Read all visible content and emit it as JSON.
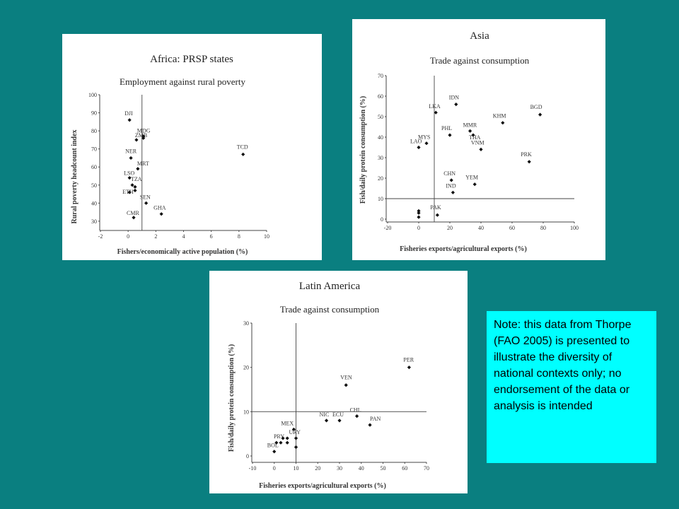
{
  "note": "Note:  this data from Thorpe (FAO 2005) is presented to illustrate the diversity of national contexts only; no endorsement of the data or analysis is intended",
  "chart_data": [
    {
      "id": "africa",
      "type": "scatter",
      "title": "Africa: PRSP states",
      "subtitle": "Employment against rural poverty",
      "xlabel": "Fishers/economically active population (%)",
      "ylabel": "Rural poverty headcount index",
      "xlim": [
        -2,
        10
      ],
      "ylim": [
        28,
        100
      ],
      "xticks": [
        -2,
        0,
        2,
        4,
        6,
        8,
        10
      ],
      "yticks": [
        30,
        40,
        50,
        60,
        70,
        80,
        90,
        100
      ],
      "ref_x": 1,
      "points": [
        {
          "label": "DJI",
          "x": 0.1,
          "y": 86
        },
        {
          "label": "ZMB",
          "x": 0.6,
          "y": 75
        },
        {
          "label": "MDG",
          "x": 1.1,
          "y": 76
        },
        {
          "label": "",
          "x": 1.1,
          "y": 77
        },
        {
          "label": "NER",
          "x": 0.2,
          "y": 65
        },
        {
          "label": "MRT",
          "x": 0.7,
          "y": 59
        },
        {
          "label": "LSO",
          "x": 0.1,
          "y": 54
        },
        {
          "label": "TZA",
          "x": 0.3,
          "y": 50
        },
        {
          "label": "",
          "x": 0.5,
          "y": 49
        },
        {
          "label": "",
          "x": 0.5,
          "y": 47
        },
        {
          "label": "ETH",
          "x": 0.1,
          "y": 46
        },
        {
          "label": "SEN",
          "x": 1.3,
          "y": 40
        },
        {
          "label": "GHA",
          "x": 2.4,
          "y": 34
        },
        {
          "label": "CMR",
          "x": 0.4,
          "y": 32
        },
        {
          "label": "TCD",
          "x": 8.3,
          "y": 67
        }
      ]
    },
    {
      "id": "asia",
      "type": "scatter",
      "title": "Asia",
      "subtitle": "Trade against consumption",
      "xlabel": "Fisheries exports/agricultural exports (%)",
      "ylabel": "Fish/daily protein consumption (%)",
      "xlim": [
        -20,
        100
      ],
      "ylim": [
        0,
        70
      ],
      "xticks": [
        -20,
        0,
        20,
        40,
        60,
        80,
        100
      ],
      "yticks": [
        0,
        10,
        20,
        30,
        40,
        50,
        60,
        70
      ],
      "ref_x": 10,
      "ref_y": 10,
      "points": [
        {
          "label": "IDN",
          "x": 24,
          "y": 56
        },
        {
          "label": "LKA",
          "x": 11,
          "y": 52
        },
        {
          "label": "BGD",
          "x": 78,
          "y": 51
        },
        {
          "label": "KHM",
          "x": 54,
          "y": 47
        },
        {
          "label": "MMR",
          "x": 33,
          "y": 43
        },
        {
          "label": "THA",
          "x": 35,
          "y": 41
        },
        {
          "label": "PHL",
          "x": 20,
          "y": 41
        },
        {
          "label": "MYS",
          "x": 5,
          "y": 37
        },
        {
          "label": "LAO",
          "x": 0,
          "y": 35
        },
        {
          "label": "VNM",
          "x": 40,
          "y": 34
        },
        {
          "label": "PRK",
          "x": 71,
          "y": 28
        },
        {
          "label": "CHN",
          "x": 21,
          "y": 19
        },
        {
          "label": "YEM",
          "x": 36,
          "y": 17
        },
        {
          "label": "IND",
          "x": 22,
          "y": 13
        },
        {
          "label": "PAK",
          "x": 12,
          "y": 2
        },
        {
          "label": "",
          "x": 0,
          "y": 4
        },
        {
          "label": "",
          "x": 0,
          "y": 3
        },
        {
          "label": "",
          "x": 0,
          "y": 1
        }
      ]
    },
    {
      "id": "latin",
      "type": "scatter",
      "title": "Latin America",
      "subtitle": "Trade against consumption",
      "xlabel": "Fisheries exports/agricultural exports (%)",
      "ylabel": "Fish/daily protein consumption (%)",
      "xlim": [
        -10,
        70
      ],
      "ylim": [
        0,
        30
      ],
      "xticks": [
        -10,
        0,
        10,
        20,
        30,
        40,
        50,
        60,
        70
      ],
      "yticks": [
        0,
        10,
        20,
        30
      ],
      "ref_x": 10,
      "ref_y": 10,
      "points": [
        {
          "label": "PER",
          "x": 62,
          "y": 20
        },
        {
          "label": "VEN",
          "x": 33,
          "y": 16
        },
        {
          "label": "CHL",
          "x": 38,
          "y": 9
        },
        {
          "label": "NIC",
          "x": 24,
          "y": 8
        },
        {
          "label": "ECU",
          "x": 30,
          "y": 8
        },
        {
          "label": "PAN",
          "x": 44,
          "y": 7
        },
        {
          "label": "MEX",
          "x": 9,
          "y": 6
        },
        {
          "label": "URY",
          "x": 10,
          "y": 4
        },
        {
          "label": "PRY",
          "x": 3,
          "y": 3
        },
        {
          "label": "BOL",
          "x": 0,
          "y": 1
        },
        {
          "label": "",
          "x": 1,
          "y": 3
        },
        {
          "label": "",
          "x": 4,
          "y": 4
        },
        {
          "label": "",
          "x": 6,
          "y": 4
        },
        {
          "label": "",
          "x": 6,
          "y": 3
        },
        {
          "label": "",
          "x": 10,
          "y": 2
        }
      ]
    }
  ]
}
